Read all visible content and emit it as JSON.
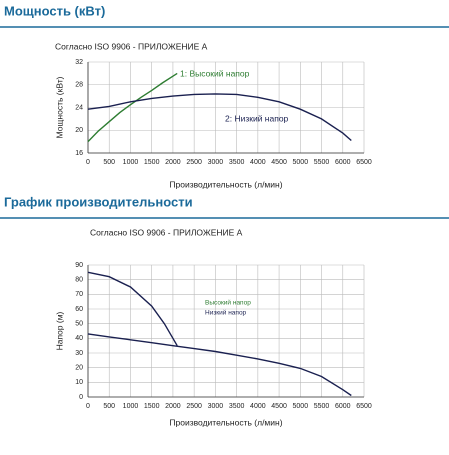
{
  "chart_data": [
    {
      "type": "line",
      "heading": "Мощность (кВт)",
      "title": "Согласно ISO 9906 - ПРИЛОЖЕНИЕ А",
      "xlabel": "Производительность (л/мин)",
      "ylabel": "Мощность (кВт)",
      "xlim": [
        0,
        6500
      ],
      "xticks": [
        0,
        500,
        1000,
        1500,
        2000,
        2500,
        3000,
        3500,
        4000,
        4500,
        5000,
        5500,
        6000,
        6500
      ],
      "ylim": [
        16,
        32
      ],
      "yticks": [
        16,
        20,
        24,
        28,
        32
      ],
      "grid": true,
      "series": [
        {
          "name": "1: Высокий напор",
          "color": "#2e7d32",
          "x": [
            0,
            250,
            500,
            750,
            1000,
            1250,
            1500,
            1750,
            2000,
            2100
          ],
          "values": [
            18,
            19.9,
            21.5,
            23.1,
            24.5,
            25.8,
            27,
            28.3,
            29.5,
            30
          ]
        },
        {
          "name": "2: Низкий напор",
          "color": "#1a2050",
          "x": [
            0,
            500,
            1000,
            1500,
            2000,
            2500,
            3000,
            3500,
            4000,
            4500,
            5000,
            5500,
            6000,
            6200
          ],
          "values": [
            23.7,
            24.2,
            25,
            25.6,
            26,
            26.3,
            26.4,
            26.3,
            25.8,
            25,
            23.7,
            22,
            19.5,
            18.2
          ]
        }
      ]
    },
    {
      "type": "line",
      "heading": "График производительности",
      "title": "Согласно ISO 9906 - ПРИЛОЖЕНИЕ А",
      "xlabel": "Производительность (л/мин)",
      "ylabel": "Напор (м)",
      "xlim": [
        0,
        6500
      ],
      "xticks": [
        0,
        500,
        1000,
        1500,
        2000,
        2500,
        3000,
        3500,
        4000,
        4500,
        5000,
        5500,
        6000,
        6500
      ],
      "ylim": [
        0,
        90
      ],
      "yticks": [
        0,
        10,
        20,
        30,
        40,
        50,
        60,
        70,
        80,
        90
      ],
      "grid": true,
      "series": [
        {
          "name": "Высокий напор",
          "color": "#1a2050",
          "legend_color": "#2e7d32",
          "x": [
            0,
            500,
            1000,
            1500,
            1800,
            2000,
            2100
          ],
          "values": [
            85,
            82,
            75,
            62,
            50,
            40,
            35
          ]
        },
        {
          "name": "Низкий напор",
          "color": "#1a2050",
          "legend_color": "#1a2050",
          "x": [
            0,
            500,
            1000,
            1500,
            2000,
            2500,
            3000,
            3500,
            4000,
            4500,
            5000,
            5500,
            6000,
            6200
          ],
          "values": [
            43,
            41,
            39,
            37,
            35,
            33,
            31,
            28.5,
            26,
            23,
            19.5,
            14,
            5,
            1
          ]
        }
      ]
    }
  ]
}
